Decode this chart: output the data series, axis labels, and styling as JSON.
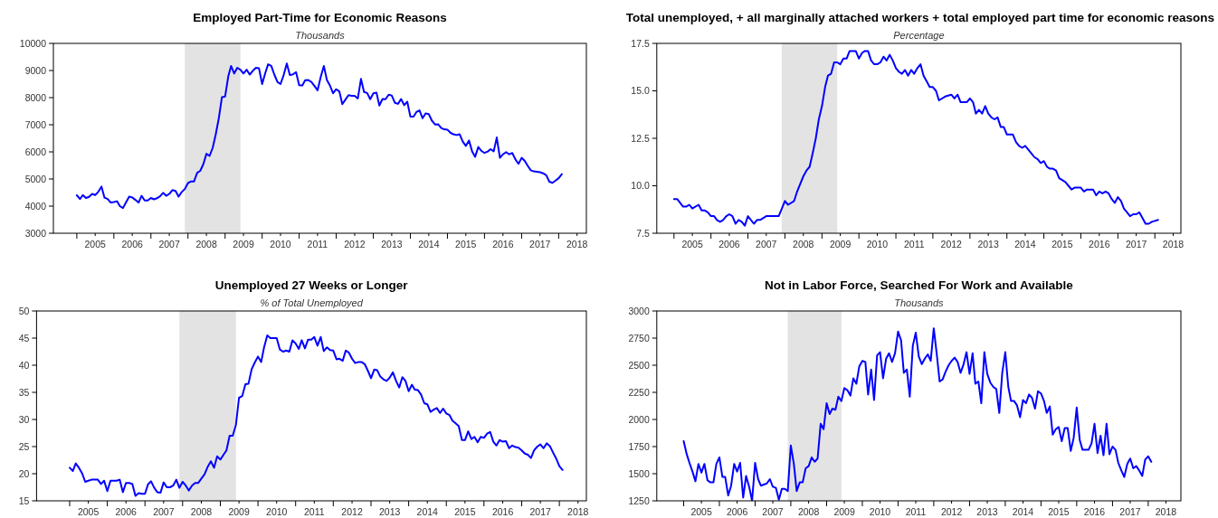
{
  "chart_data": [
    {
      "type": "line",
      "title": "Employed Part-Time for Economic Reasons",
      "subtitle": "Thousands",
      "color": "#0000ff",
      "x": [
        "2005-01",
        "2005-02",
        "2005-03",
        "2005-04",
        "2005-05",
        "2005-06",
        "2005-07",
        "2005-08",
        "2005-09",
        "2005-10",
        "2005-11",
        "2005-12",
        "2006-01",
        "2006-02",
        "2006-03",
        "2006-04",
        "2006-05",
        "2006-06",
        "2006-07",
        "2006-08",
        "2006-09",
        "2006-10",
        "2006-11",
        "2006-12",
        "2007-01",
        "2007-02",
        "2007-03",
        "2007-04",
        "2007-05",
        "2007-06",
        "2007-07",
        "2007-08",
        "2007-09",
        "2007-10",
        "2007-11",
        "2007-12",
        "2008-01",
        "2008-02",
        "2008-03",
        "2008-04",
        "2008-05",
        "2008-06",
        "2008-07",
        "2008-08",
        "2008-09",
        "2008-10",
        "2008-11",
        "2008-12",
        "2009-01",
        "2009-02",
        "2009-03",
        "2009-04",
        "2009-05",
        "2009-06",
        "2009-07",
        "2009-08",
        "2009-09",
        "2009-10",
        "2009-11",
        "2009-12",
        "2010-01",
        "2010-02",
        "2010-03",
        "2010-04",
        "2010-05",
        "2010-06",
        "2010-07",
        "2010-08",
        "2010-09",
        "2010-10",
        "2010-11",
        "2010-12",
        "2011-01",
        "2011-02",
        "2011-03",
        "2011-04",
        "2011-05",
        "2011-06",
        "2011-07",
        "2011-08",
        "2011-09",
        "2011-10",
        "2011-11",
        "2011-12",
        "2012-01",
        "2012-02",
        "2012-03",
        "2012-04",
        "2012-05",
        "2012-06",
        "2012-07",
        "2012-08",
        "2012-09",
        "2012-10",
        "2012-11",
        "2012-12",
        "2013-01",
        "2013-02",
        "2013-03",
        "2013-04",
        "2013-05",
        "2013-06",
        "2013-07",
        "2013-08",
        "2013-09",
        "2013-10",
        "2013-11",
        "2013-12",
        "2014-01",
        "2014-02",
        "2014-03",
        "2014-04",
        "2014-05",
        "2014-06",
        "2014-07",
        "2014-08",
        "2014-09",
        "2014-10",
        "2014-11",
        "2014-12",
        "2015-01",
        "2015-02",
        "2015-03",
        "2015-04",
        "2015-05",
        "2015-06",
        "2015-07",
        "2015-08",
        "2015-09",
        "2015-10",
        "2015-11",
        "2015-12",
        "2016-01",
        "2016-02",
        "2016-03",
        "2016-04",
        "2016-05",
        "2016-06",
        "2016-07",
        "2016-08",
        "2016-09",
        "2016-10",
        "2016-11",
        "2016-12",
        "2017-01",
        "2017-02",
        "2017-03",
        "2017-04",
        "2017-05",
        "2017-06",
        "2017-07",
        "2017-08",
        "2017-09",
        "2017-10",
        "2017-11",
        "2017-12",
        "2018-01",
        "2018-02"
      ],
      "values": [
        4400,
        4260,
        4410,
        4300,
        4340,
        4450,
        4410,
        4530,
        4720,
        4310,
        4260,
        4130,
        4150,
        4180,
        4000,
        3930,
        4140,
        4350,
        4320,
        4230,
        4130,
        4380,
        4210,
        4210,
        4300,
        4250,
        4290,
        4360,
        4490,
        4380,
        4450,
        4590,
        4560,
        4350,
        4520,
        4630,
        4850,
        4910,
        4910,
        5230,
        5300,
        5550,
        5930,
        5850,
        6150,
        6650,
        7260,
        8020,
        8040,
        8780,
        9170,
        8890,
        9100,
        9030,
        8890,
        9030,
        8850,
        8990,
        9100,
        9080,
        8500,
        8910,
        9230,
        9170,
        8850,
        8580,
        8500,
        8830,
        9260,
        8830,
        8860,
        8940,
        8460,
        8450,
        8640,
        8650,
        8580,
        8430,
        8270,
        8760,
        9170,
        8650,
        8440,
        8160,
        8310,
        8230,
        7760,
        7930,
        8090,
        8070,
        8070,
        7970,
        8690,
        8210,
        8170,
        7940,
        8160,
        8180,
        7710,
        7950,
        7940,
        8110,
        8080,
        7810,
        7770,
        7950,
        7720,
        7850,
        7300,
        7300,
        7470,
        7530,
        7240,
        7420,
        7390,
        7150,
        7010,
        7020,
        6880,
        6830,
        6820,
        6700,
        6650,
        6620,
        6650,
        6380,
        6220,
        6420,
        6020,
        5820,
        6180,
        6040,
        5960,
        6010,
        6100,
        6020,
        6530,
        5780,
        5910,
        5990,
        5910,
        5960,
        5720,
        5560,
        5780,
        5670,
        5490,
        5320,
        5280,
        5270,
        5250,
        5210,
        5140,
        4900,
        4860,
        4940,
        5030,
        5180
      ],
      "xlim": [
        "2004-05-15",
        "2018-10-01"
      ],
      "ylim": [
        3000,
        10000
      ],
      "yticks": [
        3000,
        4000,
        5000,
        6000,
        7000,
        8000,
        9000,
        10000
      ],
      "xticks": [
        {
          "value": "2005-01-01",
          "label": null
        },
        {
          "value": "2006-01-01",
          "label": null
        },
        {
          "value": "2007-01-01",
          "label": null
        },
        {
          "value": "2008-01-01",
          "label": null
        },
        {
          "value": "2009-01-01",
          "label": null
        },
        {
          "value": "2010-01-01",
          "label": null
        },
        {
          "value": "2011-01-01",
          "label": null
        },
        {
          "value": "2012-01-01",
          "label": null
        },
        {
          "value": "2013-01-01",
          "label": null
        },
        {
          "value": "2014-01-01",
          "label": null
        },
        {
          "value": "2015-01-01",
          "label": null
        },
        {
          "value": "2016-01-01",
          "label": null
        },
        {
          "value": "2017-01-01",
          "label": null
        },
        {
          "value": "2018-01-01",
          "label": null
        },
        {
          "value": "2005-07-01",
          "label": "2005"
        },
        {
          "value": "2006-07-01",
          "label": "2006"
        },
        {
          "value": "2007-07-01",
          "label": "2007"
        },
        {
          "value": "2008-07-01",
          "label": "2008"
        },
        {
          "value": "2009-07-01",
          "label": "2009"
        },
        {
          "value": "2010-07-01",
          "label": "2010"
        },
        {
          "value": "2011-07-01",
          "label": "2011"
        },
        {
          "value": "2012-07-01",
          "label": "2012"
        },
        {
          "value": "2013-07-01",
          "label": "2013"
        },
        {
          "value": "2014-07-01",
          "label": "2014"
        },
        {
          "value": "2015-07-01",
          "label": "2015"
        },
        {
          "value": "2016-07-01",
          "label": "2016"
        },
        {
          "value": "2017-07-01",
          "label": "2017"
        },
        {
          "value": "2018-07-01",
          "label": "2018"
        }
      ],
      "bands": [
        {
          "axis": "x",
          "from": "2007-12",
          "to": "2009-06",
          "color": "#e3e3e3"
        }
      ]
    },
    {
      "type": "line",
      "title": "Total unemployed, + all marginally attached workers + total employed part time for economic reasons",
      "subtitle": "Percentage",
      "color": "#0000ff",
      "x": [
        "2005-01",
        "2005-02",
        "2005-04",
        "2005-05",
        "2005-06",
        "2005-07",
        "2005-09",
        "2005-10",
        "2005-11",
        "2005-12",
        "2006-01",
        "2006-02",
        "2006-03",
        "2006-04",
        "2006-05",
        "2006-06",
        "2006-07",
        "2006-08",
        "2006-09",
        "2006-10",
        "2006-11",
        "2006-12",
        "2007-01",
        "2007-03",
        "2007-04",
        "2007-05",
        "2007-07",
        "2007-11",
        "2008-01",
        "2008-02",
        "2008-04",
        "2008-05",
        "2008-07",
        "2008-08",
        "2008-09",
        "2008-10",
        "2008-11",
        "2008-12",
        "2009-01",
        "2009-02",
        "2009-03",
        "2009-04",
        "2009-05",
        "2009-06",
        "2009-07",
        "2009-08",
        "2009-09",
        "2009-10",
        "2009-11",
        "2009-12",
        "2010-01",
        "2010-02",
        "2010-03",
        "2010-04",
        "2010-05",
        "2010-06",
        "2010-07",
        "2010-08",
        "2010-09",
        "2010-10",
        "2010-11",
        "2010-12",
        "2011-01",
        "2011-02",
        "2011-03",
        "2011-04",
        "2011-05",
        "2011-06",
        "2011-07",
        "2011-08",
        "2011-09",
        "2011-10",
        "2011-11",
        "2011-12",
        "2012-01",
        "2012-02",
        "2012-03",
        "2012-05",
        "2012-07",
        "2012-08",
        "2012-09",
        "2012-10",
        "2012-12",
        "2013-01",
        "2013-02",
        "2013-03",
        "2013-04",
        "2013-05",
        "2013-06",
        "2013-07",
        "2013-08",
        "2013-09",
        "2013-10",
        "2013-11",
        "2013-12",
        "2014-01",
        "2014-03",
        "2014-04",
        "2014-05",
        "2014-06",
        "2014-07",
        "2014-09",
        "2014-10",
        "2014-11",
        "2014-12",
        "2015-01",
        "2015-02",
        "2015-03",
        "2015-04",
        "2015-05",
        "2015-06",
        "2015-07",
        "2015-08",
        "2015-09",
        "2015-10",
        "2015-11",
        "2015-12",
        "2016-01",
        "2016-02",
        "2016-03",
        "2016-04",
        "2016-05",
        "2016-06",
        "2016-07",
        "2016-08",
        "2016-09",
        "2016-10",
        "2016-11",
        "2016-12",
        "2017-01",
        "2017-02",
        "2017-03",
        "2017-04",
        "2017-05",
        "2017-06",
        "2017-07",
        "2017-08",
        "2017-09",
        "2017-10",
        "2017-11",
        "2017-12",
        "2018-01",
        "2018-02"
      ],
      "values": [
        9.3,
        9.3,
        8.9,
        8.9,
        9.0,
        8.8,
        9.0,
        8.7,
        8.7,
        8.6,
        8.4,
        8.4,
        8.2,
        8.1,
        8.2,
        8.4,
        8.5,
        8.4,
        8.0,
        8.2,
        8.1,
        7.9,
        8.4,
        8.0,
        8.2,
        8.2,
        8.4,
        8.4,
        9.2,
        9.0,
        9.2,
        9.7,
        10.5,
        10.8,
        11.0,
        11.7,
        12.5,
        13.5,
        14.2,
        15.2,
        15.8,
        15.9,
        16.5,
        16.5,
        16.4,
        16.7,
        16.7,
        17.1,
        17.1,
        17.1,
        16.7,
        17.0,
        17.1,
        17.1,
        16.6,
        16.4,
        16.4,
        16.5,
        16.8,
        16.6,
        16.9,
        16.6,
        16.2,
        16.0,
        15.9,
        16.1,
        15.8,
        16.1,
        15.9,
        16.2,
        16.4,
        15.8,
        15.5,
        15.2,
        15.2,
        15.0,
        14.5,
        14.7,
        14.8,
        14.6,
        14.8,
        14.4,
        14.4,
        14.6,
        14.4,
        13.8,
        14.0,
        13.8,
        14.2,
        13.8,
        13.6,
        13.5,
        13.6,
        13.1,
        13.1,
        12.7,
        12.7,
        12.3,
        12.1,
        12.0,
        12.1,
        11.7,
        11.5,
        11.4,
        11.2,
        11.3,
        11.0,
        10.9,
        10.9,
        10.8,
        10.4,
        10.3,
        10.2,
        10.0,
        9.8,
        9.9,
        9.9,
        9.9,
        9.7,
        9.8,
        9.8,
        9.8,
        9.5,
        9.7,
        9.6,
        9.7,
        9.6,
        9.3,
        9.1,
        9.4,
        9.2,
        8.8,
        8.6,
        8.4,
        8.5,
        8.5,
        8.6,
        8.3,
        8.0,
        8.0,
        8.1,
        8.15,
        8.2
      ],
      "xlim": [
        "2004-07-15",
        "2018-09-15"
      ],
      "ylim": [
        7.5,
        17.5
      ],
      "yticks": [
        7.5,
        {
          "value": 10,
          "label": "10.0"
        },
        12.5,
        {
          "value": 15,
          "label": "15.0"
        },
        17.5
      ],
      "xticks": [
        {
          "value": "2005-01-01",
          "label": null
        },
        {
          "value": "2006-01-01",
          "label": null
        },
        {
          "value": "2007-01-01",
          "label": null
        },
        {
          "value": "2008-01-01",
          "label": null
        },
        {
          "value": "2009-01-01",
          "label": null
        },
        {
          "value": "2010-01-01",
          "label": null
        },
        {
          "value": "2011-01-01",
          "label": null
        },
        {
          "value": "2012-01-01",
          "label": null
        },
        {
          "value": "2013-01-01",
          "label": null
        },
        {
          "value": "2014-01-01",
          "label": null
        },
        {
          "value": "2015-01-01",
          "label": null
        },
        {
          "value": "2016-01-01",
          "label": null
        },
        {
          "value": "2017-01-01",
          "label": null
        },
        {
          "value": "2018-01-01",
          "label": null
        },
        {
          "value": "2005-07-01",
          "label": "2005"
        },
        {
          "value": "2006-07-01",
          "label": "2006"
        },
        {
          "value": "2007-07-01",
          "label": "2007"
        },
        {
          "value": "2008-07-01",
          "label": "2008"
        },
        {
          "value": "2009-07-01",
          "label": "2009"
        },
        {
          "value": "2010-07-01",
          "label": "2010"
        },
        {
          "value": "2011-07-01",
          "label": "2011"
        },
        {
          "value": "2012-07-01",
          "label": "2012"
        },
        {
          "value": "2013-07-01",
          "label": "2013"
        },
        {
          "value": "2014-07-01",
          "label": "2014"
        },
        {
          "value": "2015-07-01",
          "label": "2015"
        },
        {
          "value": "2016-07-01",
          "label": "2016"
        },
        {
          "value": "2017-07-01",
          "label": "2017"
        },
        {
          "value": "2018-07-01",
          "label": "2018"
        }
      ],
      "bands": [
        {
          "axis": "x",
          "from": "2007-12",
          "to": "2009-06",
          "color": "#e3e3e3"
        }
      ]
    },
    {
      "type": "line",
      "title": "Unemployed 27 Weeks or Longer",
      "subtitle": "% of Total Unemployed",
      "color": "#0000ff",
      "x": [
        "2005-01",
        "2005-02",
        "2005-03",
        "2005-04",
        "2005-05",
        "2005-06",
        "2005-07",
        "2005-08",
        "2005-09",
        "2005-10",
        "2005-11",
        "2005-12",
        "2006-01",
        "2006-02",
        "2006-03",
        "2006-04",
        "2006-05",
        "2006-06",
        "2006-07",
        "2006-08",
        "2006-09",
        "2006-10",
        "2006-11",
        "2006-12",
        "2007-01",
        "2007-02",
        "2007-03",
        "2007-04",
        "2007-05",
        "2007-06",
        "2007-07",
        "2007-08",
        "2007-09",
        "2007-10",
        "2007-11",
        "2007-12",
        "2008-01",
        "2008-02",
        "2008-03",
        "2008-04",
        "2008-05",
        "2008-06",
        "2008-07",
        "2008-08",
        "2008-09",
        "2008-10",
        "2008-11",
        "2008-12",
        "2009-01",
        "2009-02",
        "2009-03",
        "2009-04",
        "2009-05",
        "2009-06",
        "2009-07",
        "2009-08",
        "2009-09",
        "2009-10",
        "2009-11",
        "2009-12",
        "2010-01",
        "2010-02",
        "2010-03",
        "2010-04",
        "2010-05",
        "2010-06",
        "2010-07",
        "2010-08",
        "2010-09",
        "2010-10",
        "2010-11",
        "2010-12",
        "2011-01",
        "2011-02",
        "2011-03",
        "2011-04",
        "2011-05",
        "2011-06",
        "2011-07",
        "2011-08",
        "2011-09",
        "2011-10",
        "2011-11",
        "2011-12",
        "2012-01",
        "2012-02",
        "2012-03",
        "2012-04",
        "2012-05",
        "2012-06",
        "2012-07",
        "2012-08",
        "2012-09",
        "2012-10",
        "2012-11",
        "2012-12",
        "2013-01",
        "2013-02",
        "2013-03",
        "2013-04",
        "2013-05",
        "2013-06",
        "2013-07",
        "2013-08",
        "2013-09",
        "2013-10",
        "2013-11",
        "2013-12",
        "2014-01",
        "2014-02",
        "2014-03",
        "2014-04",
        "2014-05",
        "2014-06",
        "2014-07",
        "2014-08",
        "2014-09",
        "2014-10",
        "2014-11",
        "2014-12",
        "2015-01",
        "2015-02",
        "2015-03",
        "2015-04",
        "2015-05",
        "2015-06",
        "2015-07",
        "2015-08",
        "2015-09",
        "2015-10",
        "2015-11",
        "2015-12",
        "2016-01",
        "2016-02",
        "2016-03",
        "2016-04",
        "2016-05",
        "2016-06",
        "2016-07",
        "2016-08",
        "2016-09",
        "2016-10",
        "2016-11",
        "2016-12",
        "2017-01",
        "2017-02",
        "2017-03",
        "2017-04",
        "2017-05",
        "2017-06",
        "2017-07",
        "2017-08",
        "2017-09",
        "2017-10",
        "2017-11",
        "2017-12",
        "2018-01",
        "2018-02"
      ],
      "values": [
        21.1,
        20.5,
        21.9,
        21.1,
        20.1,
        18.5,
        18.7,
        18.9,
        18.9,
        18.9,
        18.1,
        18.7,
        16.8,
        18.7,
        18.7,
        18.7,
        18.9,
        16.6,
        18.3,
        18.3,
        18.1,
        15.9,
        16.4,
        16.3,
        16.3,
        18.1,
        18.6,
        17.4,
        16.6,
        16.5,
        18.4,
        17.5,
        17.5,
        17.8,
        18.9,
        17.4,
        18.5,
        17.8,
        16.9,
        17.8,
        18.3,
        18.3,
        19.1,
        19.9,
        21.3,
        22.3,
        21.1,
        23.2,
        22.6,
        23.5,
        24.3,
        27.0,
        27.0,
        29.0,
        34.0,
        34.3,
        36.5,
        36.6,
        39.3,
        40.5,
        41.6,
        40.6,
        43.3,
        45.5,
        45.0,
        45.0,
        45.0,
        42.9,
        42.5,
        42.7,
        42.5,
        44.6,
        44.0,
        43.0,
        44.6,
        43.1,
        44.7,
        44.7,
        45.2,
        43.6,
        45.2,
        42.6,
        43.3,
        42.8,
        42.7,
        41.1,
        41.2,
        40.8,
        42.7,
        42.3,
        41.2,
        40.4,
        40.6,
        40.6,
        40.2,
        39.0,
        37.6,
        39.2,
        39.1,
        37.9,
        37.4,
        37.1,
        37.7,
        38.7,
        37.1,
        35.9,
        37.8,
        37.1,
        35.2,
        36.4,
        35.5,
        35.4,
        34.6,
        33.0,
        32.8,
        31.4,
        31.8,
        32.1,
        31.2,
        32.0,
        31.1,
        30.8,
        29.8,
        29.3,
        28.8,
        26.2,
        26.2,
        27.8,
        26.4,
        26.8,
        25.8,
        26.8,
        26.6,
        27.4,
        27.7,
        25.9,
        25.2,
        26.2,
        25.9,
        26.0,
        24.7,
        25.2,
        24.9,
        24.8,
        24.3,
        23.7,
        23.5,
        22.9,
        24.3,
        25.0,
        25.4,
        24.7,
        25.6,
        25.1,
        23.9,
        22.8,
        21.4,
        20.7
      ],
      "xlim": [
        "2004-02-15",
        "2018-09-20"
      ],
      "ylim": [
        15,
        50
      ],
      "yticks": [
        15,
        20,
        25,
        30,
        35,
        40,
        45,
        50
      ],
      "xticks": [
        {
          "value": "2005-01-01",
          "label": null
        },
        {
          "value": "2006-01-01",
          "label": null
        },
        {
          "value": "2007-01-01",
          "label": null
        },
        {
          "value": "2008-01-01",
          "label": null
        },
        {
          "value": "2009-01-01",
          "label": null
        },
        {
          "value": "2010-01-01",
          "label": null
        },
        {
          "value": "2011-01-01",
          "label": null
        },
        {
          "value": "2012-01-01",
          "label": null
        },
        {
          "value": "2013-01-01",
          "label": null
        },
        {
          "value": "2014-01-01",
          "label": null
        },
        {
          "value": "2015-01-01",
          "label": null
        },
        {
          "value": "2016-01-01",
          "label": null
        },
        {
          "value": "2017-01-01",
          "label": null
        },
        {
          "value": "2018-01-01",
          "label": null
        },
        {
          "value": "2005-07-01",
          "label": "2005"
        },
        {
          "value": "2006-07-01",
          "label": "2006"
        },
        {
          "value": "2007-07-01",
          "label": "2007"
        },
        {
          "value": "2008-07-01",
          "label": "2008"
        },
        {
          "value": "2009-07-01",
          "label": "2009"
        },
        {
          "value": "2010-07-01",
          "label": "2010"
        },
        {
          "value": "2011-07-01",
          "label": "2011"
        },
        {
          "value": "2012-07-01",
          "label": "2012"
        },
        {
          "value": "2013-07-01",
          "label": "2013"
        },
        {
          "value": "2014-07-01",
          "label": "2014"
        },
        {
          "value": "2015-07-01",
          "label": "2015"
        },
        {
          "value": "2016-07-01",
          "label": "2016"
        },
        {
          "value": "2017-07-01",
          "label": "2017"
        },
        {
          "value": "2018-07-01",
          "label": "2018"
        }
      ],
      "bands": [
        {
          "axis": "x",
          "from": "2007-12",
          "to": "2009-06",
          "color": "#e3e3e3"
        }
      ]
    },
    {
      "type": "line",
      "title": "Not in Labor Force, Searched For Work and Available",
      "subtitle": "Thousands",
      "color": "#0000ff",
      "x": [
        "2005-01",
        "2005-02",
        "2005-03",
        "2005-04",
        "2005-05",
        "2005-06",
        "2005-07",
        "2005-08",
        "2005-09",
        "2005-10",
        "2005-11",
        "2005-12",
        "2006-01",
        "2006-02",
        "2006-03",
        "2006-04",
        "2006-05",
        "2006-06",
        "2006-07",
        "2006-08",
        "2006-09",
        "2006-10",
        "2006-11",
        "2006-12",
        "2007-01",
        "2007-02",
        "2007-03",
        "2007-04",
        "2007-05",
        "2007-06",
        "2007-07",
        "2007-08",
        "2007-09",
        "2007-10",
        "2007-11",
        "2007-12",
        "2008-01",
        "2008-02",
        "2008-03",
        "2008-04",
        "2008-05",
        "2008-06",
        "2008-07",
        "2008-08",
        "2008-09",
        "2008-10",
        "2008-11",
        "2008-12",
        "2009-01",
        "2009-02",
        "2009-03",
        "2009-04",
        "2009-05",
        "2009-06",
        "2009-07",
        "2009-08",
        "2009-09",
        "2009-10",
        "2009-11",
        "2009-12",
        "2010-01",
        "2010-02",
        "2010-03",
        "2010-04",
        "2010-05",
        "2010-06",
        "2010-07",
        "2010-08",
        "2010-09",
        "2010-10",
        "2010-11",
        "2010-12",
        "2011-01",
        "2011-02",
        "2011-03",
        "2011-04",
        "2011-05",
        "2011-06",
        "2011-07",
        "2011-08",
        "2011-09",
        "2011-10",
        "2011-11",
        "2011-12",
        "2012-01",
        "2012-02",
        "2012-03",
        "2012-04",
        "2012-05",
        "2012-06",
        "2012-07",
        "2012-08",
        "2012-09",
        "2012-10",
        "2012-11",
        "2012-12",
        "2013-01",
        "2013-02",
        "2013-03",
        "2013-04",
        "2013-05",
        "2013-06",
        "2013-07",
        "2013-08",
        "2013-09",
        "2013-10",
        "2013-11",
        "2013-12",
        "2014-01",
        "2014-02",
        "2014-03",
        "2014-04",
        "2014-05",
        "2014-06",
        "2014-07",
        "2014-08",
        "2014-09",
        "2014-10",
        "2014-11",
        "2014-12",
        "2015-01",
        "2015-02",
        "2015-03",
        "2015-04",
        "2015-05",
        "2015-06",
        "2015-07",
        "2015-08",
        "2015-09",
        "2015-10",
        "2015-11",
        "2015-12",
        "2016-01",
        "2016-02",
        "2016-03",
        "2016-04",
        "2016-05",
        "2016-06",
        "2016-07",
        "2016-08",
        "2016-09",
        "2016-10",
        "2016-11",
        "2016-12",
        "2017-01",
        "2017-02",
        "2017-03",
        "2017-04",
        "2017-05",
        "2017-06",
        "2017-07",
        "2017-08",
        "2017-09",
        "2017-10",
        "2017-11",
        "2017-12",
        "2018-01",
        "2018-02"
      ],
      "values": [
        1800,
        1680,
        1600,
        1520,
        1430,
        1590,
        1510,
        1590,
        1440,
        1420,
        1420,
        1590,
        1650,
        1470,
        1470,
        1300,
        1390,
        1590,
        1520,
        1600,
        1280,
        1480,
        1380,
        1250,
        1600,
        1450,
        1390,
        1400,
        1410,
        1450,
        1380,
        1370,
        1260,
        1360,
        1360,
        1340,
        1760,
        1590,
        1340,
        1420,
        1420,
        1550,
        1570,
        1650,
        1610,
        1640,
        1960,
        1910,
        2150,
        2050,
        2100,
        2090,
        2210,
        2170,
        2290,
        2270,
        2220,
        2380,
        2330,
        2490,
        2540,
        2530,
        2230,
        2460,
        2180,
        2590,
        2620,
        2380,
        2560,
        2610,
        2530,
        2610,
        2810,
        2730,
        2430,
        2460,
        2210,
        2680,
        2800,
        2580,
        2510,
        2560,
        2600,
        2540,
        2840,
        2600,
        2350,
        2370,
        2440,
        2500,
        2540,
        2570,
        2530,
        2430,
        2510,
        2620,
        2420,
        2610,
        2330,
        2350,
        2150,
        2620,
        2420,
        2340,
        2300,
        2280,
        2060,
        2430,
        2620,
        2300,
        2170,
        2170,
        2130,
        2020,
        2180,
        2150,
        2230,
        2200,
        2100,
        2260,
        2240,
        2170,
        2060,
        2120,
        1860,
        1910,
        1930,
        1800,
        1920,
        1920,
        1710,
        1830,
        2110,
        1810,
        1720,
        1720,
        1720,
        1780,
        1960,
        1690,
        1850,
        1670,
        1960,
        1680,
        1750,
        1720,
        1600,
        1530,
        1470,
        1590,
        1640,
        1550,
        1570,
        1530,
        1480,
        1630,
        1660,
        1610
      ],
      "xlim": [
        "2004-04-01",
        "2018-12-01"
      ],
      "ylim": [
        1250,
        3000
      ],
      "yticks": [
        1250,
        1500,
        1750,
        2000,
        2250,
        2500,
        2750,
        3000
      ],
      "xticks": [
        {
          "value": "2005-01-01",
          "label": null
        },
        {
          "value": "2006-01-01",
          "label": null
        },
        {
          "value": "2007-01-01",
          "label": null
        },
        {
          "value": "2008-01-01",
          "label": null
        },
        {
          "value": "2009-01-01",
          "label": null
        },
        {
          "value": "2010-01-01",
          "label": null
        },
        {
          "value": "2011-01-01",
          "label": null
        },
        {
          "value": "2012-01-01",
          "label": null
        },
        {
          "value": "2013-01-01",
          "label": null
        },
        {
          "value": "2014-01-01",
          "label": null
        },
        {
          "value": "2015-01-01",
          "label": null
        },
        {
          "value": "2016-01-01",
          "label": null
        },
        {
          "value": "2017-01-01",
          "label": null
        },
        {
          "value": "2018-01-01",
          "label": null
        },
        {
          "value": "2005-07-01",
          "label": "2005"
        },
        {
          "value": "2006-07-01",
          "label": "2006"
        },
        {
          "value": "2007-07-01",
          "label": "2007"
        },
        {
          "value": "2008-07-01",
          "label": "2008"
        },
        {
          "value": "2009-07-01",
          "label": "2009"
        },
        {
          "value": "2010-07-01",
          "label": "2010"
        },
        {
          "value": "2011-07-01",
          "label": "2011"
        },
        {
          "value": "2012-07-01",
          "label": "2012"
        },
        {
          "value": "2013-07-01",
          "label": "2013"
        },
        {
          "value": "2014-07-01",
          "label": "2014"
        },
        {
          "value": "2015-07-01",
          "label": "2015"
        },
        {
          "value": "2016-07-01",
          "label": "2016"
        },
        {
          "value": "2017-07-01",
          "label": "2017"
        },
        {
          "value": "2018-07-01",
          "label": "2018"
        }
      ],
      "bands": [
        {
          "axis": "x",
          "from": "2007-12",
          "to": "2009-06",
          "color": "#e3e3e3"
        }
      ]
    }
  ]
}
